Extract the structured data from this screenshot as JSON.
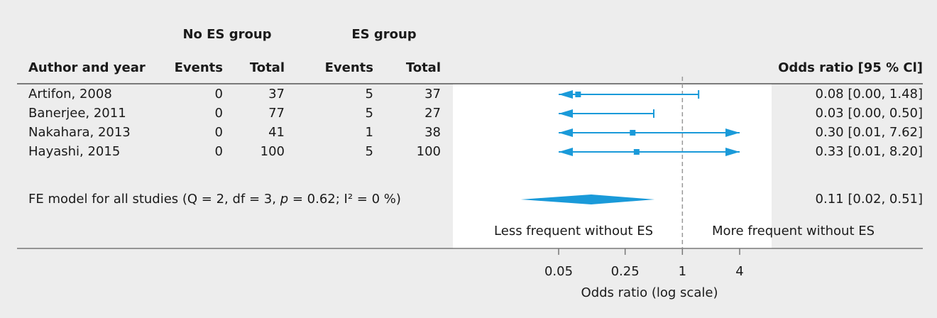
{
  "chart_data": {
    "type": "forest",
    "group_headers": [
      "No ES group",
      "ES group"
    ],
    "column_headers": [
      "Author and year",
      "Events",
      "Total",
      "Events",
      "Total",
      "Odds ratio [95 % Cl]"
    ],
    "studies": [
      {
        "label": "Artifon, 2008",
        "no_es_events": 0,
        "no_es_total": 37,
        "es_events": 5,
        "es_total": 37,
        "or": 0.08,
        "lower": 0.0,
        "upper": 1.48,
        "ci_label": "0.08 [0.00, 1.48]"
      },
      {
        "label": "Banerjee, 2011",
        "no_es_events": 0,
        "no_es_total": 77,
        "es_events": 5,
        "es_total": 27,
        "or": 0.03,
        "lower": 0.0,
        "upper": 0.5,
        "ci_label": "0.03 [0.00, 0.50]"
      },
      {
        "label": "Nakahara, 2013",
        "no_es_events": 0,
        "no_es_total": 41,
        "es_events": 1,
        "es_total": 38,
        "or": 0.3,
        "lower": 0.01,
        "upper": 7.62,
        "ci_label": "0.30 [0.01, 7.62]"
      },
      {
        "label": "Hayashi, 2015",
        "no_es_events": 0,
        "no_es_total": 100,
        "es_events": 5,
        "es_total": 100,
        "or": 0.33,
        "lower": 0.01,
        "upper": 8.2,
        "ci_label": "0.33 [0.01, 8.20]"
      }
    ],
    "summary": {
      "label_parts": [
        "FE model for all studies (Q = 2, df = 3, ",
        "p",
        " = 0.62; I² = 0 %)"
      ],
      "or": 0.11,
      "lower": 0.02,
      "upper": 0.51,
      "ci_label": "0.11 [0.02, 0.51]"
    },
    "annotations": [
      "Less frequent without ES",
      "More frequent without ES"
    ],
    "xlabel": "Odds ratio (log scale)",
    "xlim": [
      0.05,
      4
    ],
    "xticks": [
      0.05,
      0.25,
      1,
      4
    ],
    "log_scale": true,
    "reference": 1,
    "color": "#1a9ad9"
  }
}
